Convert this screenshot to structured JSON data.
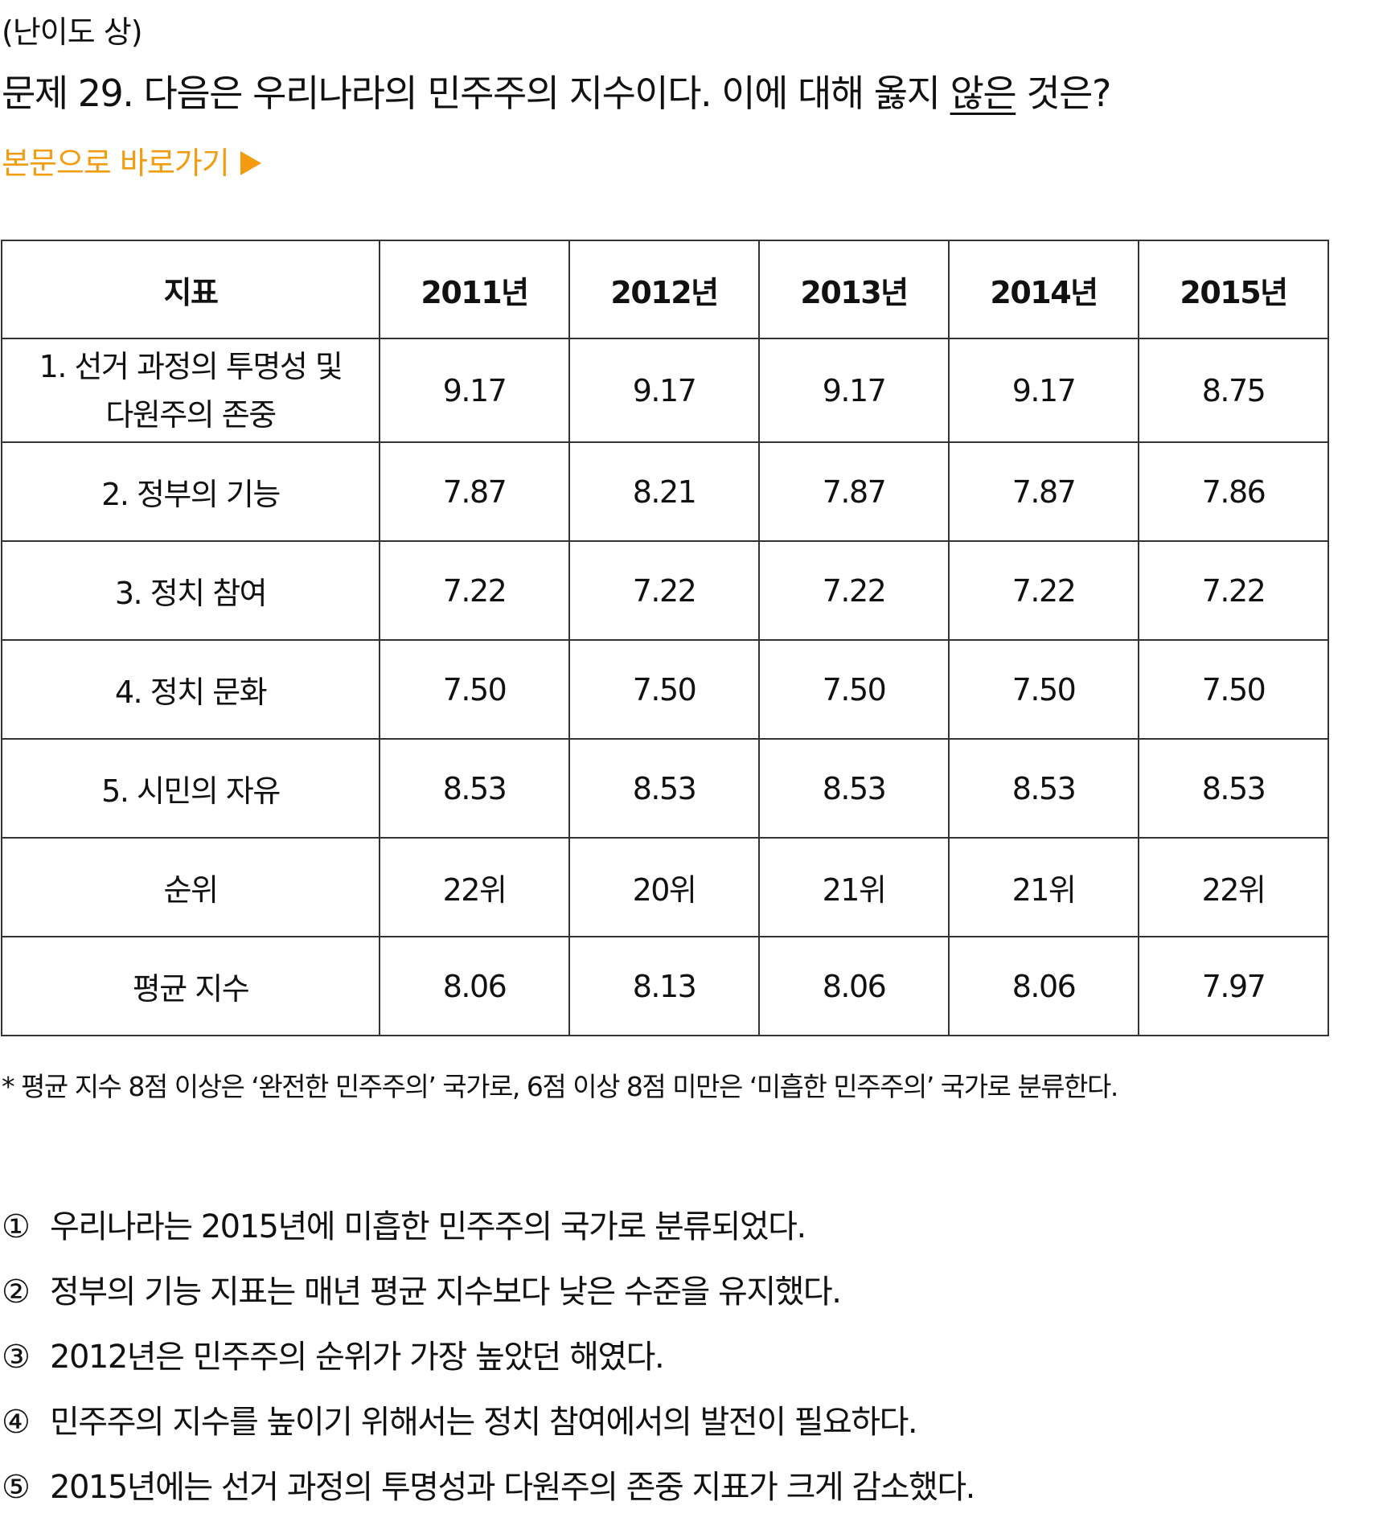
{
  "header": {
    "difficulty": "(난이도 상)",
    "question_prefix": "문제 29. 다음은 우리나라의 민주주의 지수이다. 이에 대해 옳지 ",
    "question_emphasis": "않은",
    "question_suffix": " 것은?",
    "skip_link": "본문으로 바로가기",
    "skip_icon": "play-triangle-icon"
  },
  "accent_color": "#f39c12",
  "table": {
    "columns": [
      "지표",
      "2011년",
      "2012년",
      "2013년",
      "2014년",
      "2015년"
    ],
    "rows": [
      {
        "label_line1": "1. 선거 과정의 투명성 및",
        "label_line2": "다원주의 존중",
        "values": [
          "9.17",
          "9.17",
          "9.17",
          "9.17",
          "8.75"
        ]
      },
      {
        "label": "2. 정부의 기능",
        "values": [
          "7.87",
          "8.21",
          "7.87",
          "7.87",
          "7.86"
        ]
      },
      {
        "label": "3. 정치 참여",
        "values": [
          "7.22",
          "7.22",
          "7.22",
          "7.22",
          "7.22"
        ]
      },
      {
        "label": "4. 정치 문화",
        "values": [
          "7.50",
          "7.50",
          "7.50",
          "7.50",
          "7.50"
        ]
      },
      {
        "label": "5. 시민의 자유",
        "values": [
          "8.53",
          "8.53",
          "8.53",
          "8.53",
          "8.53"
        ]
      },
      {
        "label": "순위",
        "values": [
          "22위",
          "20위",
          "21위",
          "21위",
          "22위"
        ]
      },
      {
        "label": "평균 지수",
        "values": [
          "8.06",
          "8.13",
          "8.06",
          "8.06",
          "7.97"
        ]
      }
    ]
  },
  "footnote": "* 평균 지수 8점 이상은 ‘완전한 민주주의’ 국가로, 6점 이상 8점 미만은 ‘미흡한 민주주의’ 국가로 분류한다.",
  "choices": [
    {
      "num": "①",
      "text": "우리나라는 2015년에 미흡한 민주주의 국가로 분류되었다."
    },
    {
      "num": "②",
      "text": "정부의 기능 지표는 매년 평균 지수보다 낮은 수준을 유지했다."
    },
    {
      "num": "③",
      "text": "2012년은 민주주의 순위가 가장 높았던 해였다."
    },
    {
      "num": "④",
      "text": "민주주의 지수를 높이기 위해서는 정치 참여에서의 발전이 필요하다."
    },
    {
      "num": "⑤",
      "text": "2015년에는 선거 과정의 투명성과 다원주의 존중 지표가 크게 감소했다."
    }
  ]
}
